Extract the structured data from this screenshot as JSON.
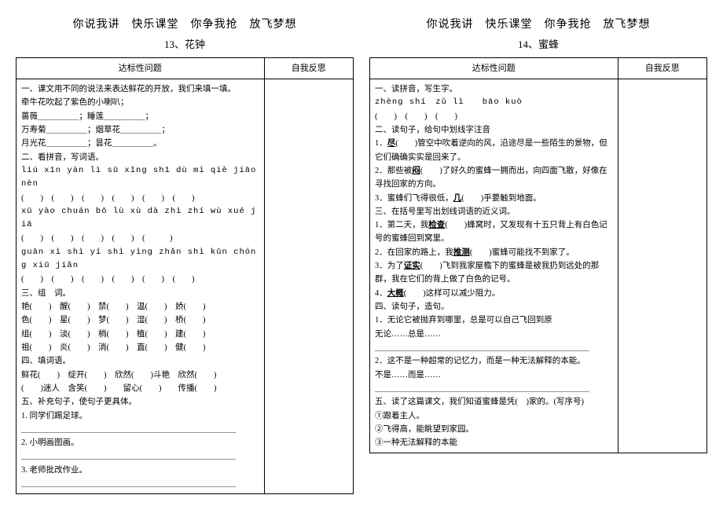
{
  "left": {
    "header": "你说我讲　快乐课堂　你争我抢　放飞梦想",
    "subtitle": "13、花钟",
    "th1": "达标性问题",
    "th2": "自我反思",
    "lines": [
      "一、课文用不同的说法来表达鲜花的开放，我们来填一填。",
      "牵牛花吹起了紫色的小喇叭；",
      "蔷薇＿＿＿＿＿；睡莲＿＿＿＿＿；",
      "万寿菊＿＿＿＿＿；烟草花＿＿＿＿＿；",
      "月光花＿＿＿＿＿；昙花＿＿＿＿＿。",
      "二、看拼音，写词语。",
      "liú xīn   yàn lì   sū xǐng   shī dù   mì qiè   jiāo nèn",
      "(　　)　(　　)　(　　)　(　　)　(　　)　(　　)",
      "xū yào   chuán bō   lù xù   dà zhì   zhí wù xué jiā",
      "(　　)　(　　)　(　　)　(　　)　(　　　)",
      "guān xì  shì yí  shì yìng  zhǎn shì  kūn chóng  xiū jiǎn",
      "(　　)　(　　)　(　　)　(　　)　(　　)　(　　)",
      "三、组　词。",
      "艳(　　)　醒(　　)　禁(　　)　温(　　)　娇(　　)",
      "色(　　)　星(　　)　梦(　　)　湿(　　)　桥(　　)",
      "组(　　)　淡(　　)　梢(　　)　植(　　)　建(　　)",
      "祖(　　)　炎(　　)　消(　　)　直(　　)　健(　　)",
      "四、填词语。",
      "鲜花(　　)　绽开(　　)　欣然(　　)斗艳　欣然(　　)",
      "(　　)迷人　含笑(　　)　　留心(　　)　　传播(　　)",
      "五、补充句子，使句子更具体。",
      "1. 同学们踢足球。",
      "＿＿＿＿＿＿＿＿＿＿＿＿＿＿＿＿＿＿＿＿＿＿＿＿＿＿",
      "2. 小明画图画。",
      "＿＿＿＿＿＿＿＿＿＿＿＿＿＿＿＿＿＿＿＿＿＿＿＿＿＿",
      "3. 老师批改作业。",
      "＿＿＿＿＿＿＿＿＿＿＿＿＿＿＿＿＿＿＿＿＿＿＿＿＿＿"
    ]
  },
  "right": {
    "header": "你说我讲　快乐课堂　你争我抢　放飞梦想",
    "subtitle": "14、蜜蜂",
    "th1": "达标性问题",
    "th2": "自我反思",
    "lines": [
      "一、读拼音，写生字。",
      "zhèng shí　zǔ lì　　bāo kuò",
      "(　　)　(　　)　(　　)",
      "二、读句子，给句中划线字注音",
      "1．<span class='ul b'>尽</span>(　　)管空中吹着逆向的风，沿途尽是一些陌生的景物，但它们确确实实是回来了。",
      "2．那些被<span class='ul b'>闷</span>(　　)了好久的蜜蜂一拥而出，向四面飞散，好像在寻找回家的方向。",
      "3．蜜蜂们飞得很低，<span class='ul b'>几</span>(　　)乎要触到地面。",
      "三、在括号里写出划线词语的近义词。",
      "1．第二天，我<span class='ul b'>检查</span>(　　)蜂窝时，又发现有十五只背上有白色记号的蜜蜂回到窝里。",
      "2．在回家的路上，我<span class='ul b'>推测</span>(　　)蜜蜂可能找不到家了。",
      "3．为了<span class='ul b'>证实</span>(　　)飞到我家屋檐下的蜜蜂是被我扔到远处的那群，我在它们的背上做了白色的记号。",
      "4．<span class='ul b'>大概</span>(　　)这样可以减少阻力。",
      "四、读句子，造句。",
      "1．无论它被抛弃到哪里，总是可以自己飞回到原",
      "无论……总是……",
      "＿＿＿＿＿＿＿＿＿＿＿＿＿＿＿＿＿＿＿＿＿＿＿＿＿＿",
      "2．这不是一种超常的记忆力，而是一种无法解释的本能。",
      "不是……而是……",
      "＿＿＿＿＿＿＿＿＿＿＿＿＿＿＿＿＿＿＿＿＿＿＿＿＿＿",
      "五、读了这篇课文，我们知道蜜蜂是凭(　)家的。(写序号)",
      "①跟着主人。",
      "②飞得高，能眺望到家园。",
      "③一种无法解释的本能"
    ]
  }
}
